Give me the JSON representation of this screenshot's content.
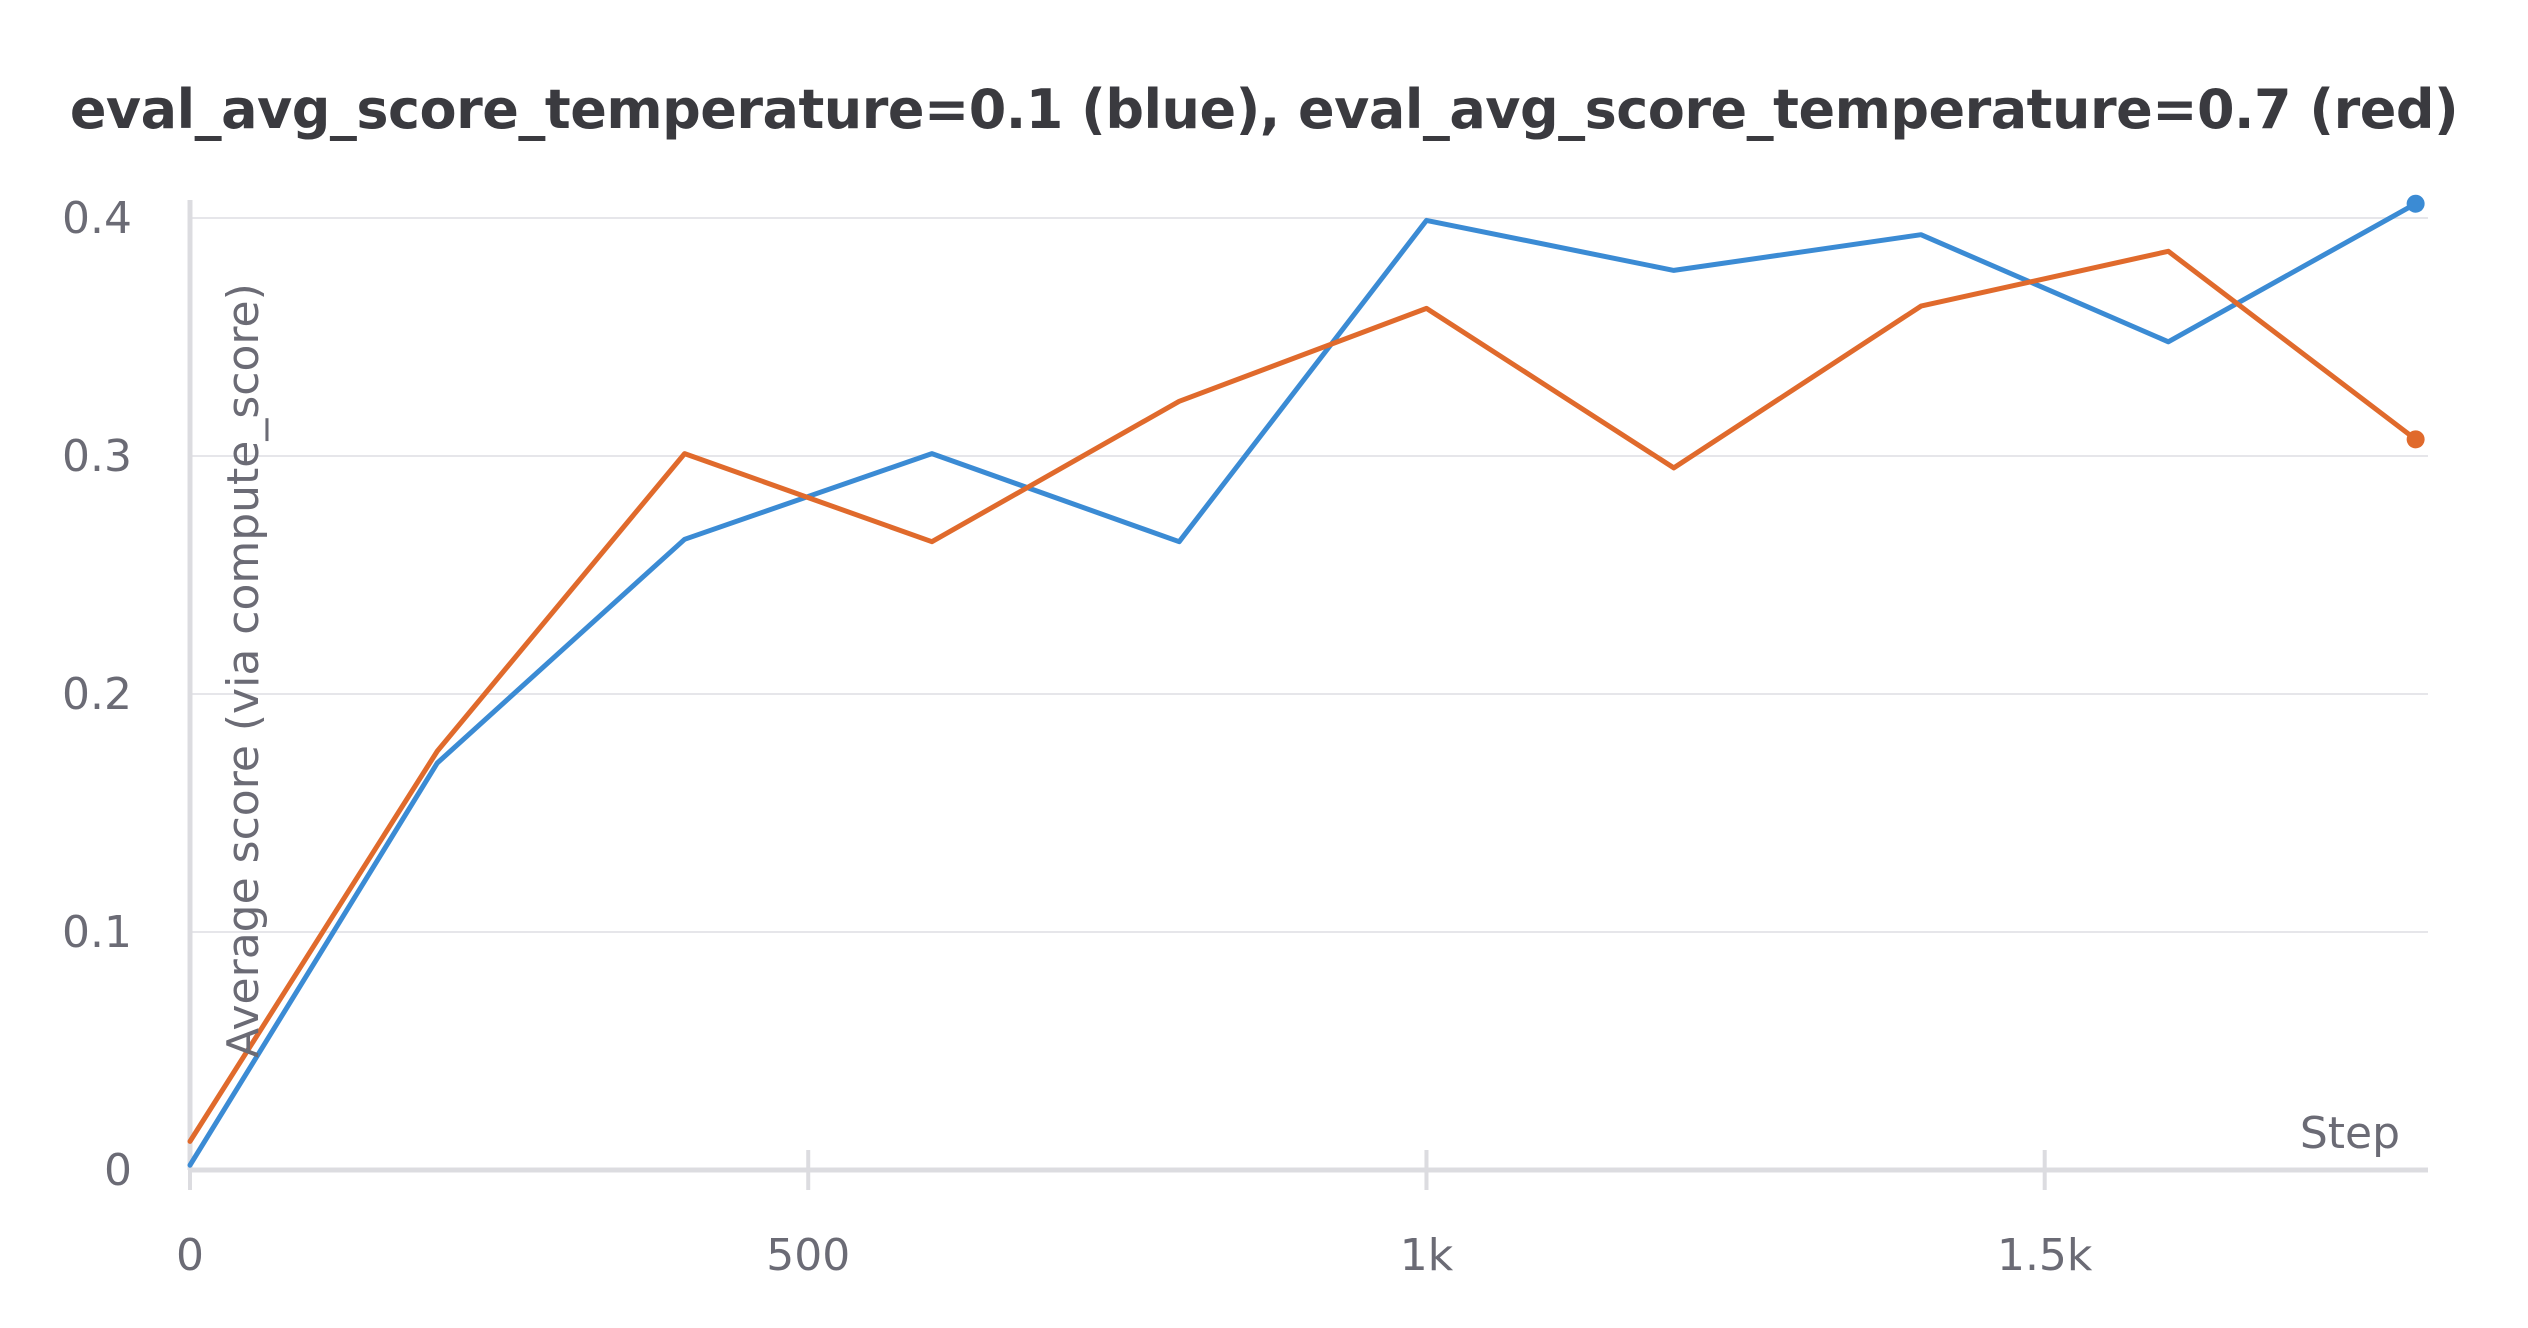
{
  "chart_data": {
    "type": "line",
    "title": "eval_avg_score_temperature=0.1 (blue), eval_avg_score_temperature=0.7 (red)",
    "xlabel": "Step",
    "ylabel": "Average score (via compute_score)",
    "xlim": [
      0,
      1810
    ],
    "ylim": [
      0,
      0.4
    ],
    "x_ticks": [
      0,
      500,
      1000,
      1500
    ],
    "x_tick_labels": [
      "0",
      "500",
      "1k",
      "1.5k"
    ],
    "y_ticks": [
      0,
      0.1,
      0.2,
      0.3,
      0.4
    ],
    "y_tick_labels": [
      "0",
      "0.1",
      "0.2",
      "0.3",
      "0.4"
    ],
    "grid": true,
    "x": [
      0,
      200,
      400,
      600,
      800,
      1000,
      1200,
      1400,
      1600,
      1800
    ],
    "series": [
      {
        "color": "#3b8bd4",
        "values": [
          0.002,
          0.171,
          0.265,
          0.301,
          0.264,
          0.399,
          0.378,
          0.393,
          0.348,
          0.406
        ]
      },
      {
        "color": "#e06a2c",
        "values": [
          0.012,
          0.176,
          0.301,
          0.264,
          0.323,
          0.362,
          0.295,
          0.363,
          0.386,
          0.307
        ]
      }
    ]
  }
}
